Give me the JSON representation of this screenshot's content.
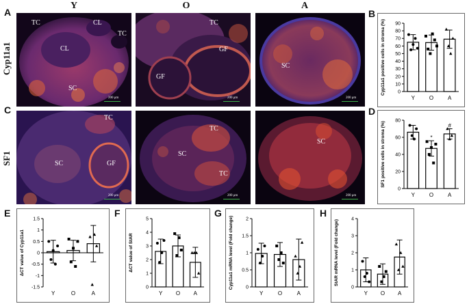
{
  "figure": {
    "columns": [
      "Y",
      "O",
      "A"
    ],
    "rows": [
      "Cyp11a1",
      "SF1"
    ],
    "panel_letters": [
      "A",
      "B",
      "C",
      "D",
      "E",
      "F",
      "G",
      "H"
    ]
  },
  "micrographs": [
    {
      "id": "A-Y",
      "labels": [
        {
          "t": "TC",
          "cls": "a"
        },
        {
          "t": "CL",
          "cls": "b"
        },
        {
          "t": "TC",
          "cls": "c"
        },
        {
          "t": "CL",
          "cls": "d"
        },
        {
          "t": "SC",
          "cls": "e"
        }
      ],
      "scale": "200 μm"
    },
    {
      "id": "A-O",
      "labels": [
        {
          "t": "TC",
          "cls": "a"
        },
        {
          "t": "GF",
          "cls": "b"
        },
        {
          "t": "GF",
          "cls": "c"
        }
      ],
      "scale": "200 μm"
    },
    {
      "id": "A-A",
      "labels": [
        {
          "t": "SC",
          "cls": "a"
        }
      ],
      "scale": "200 μm"
    },
    {
      "id": "C-Y",
      "labels": [
        {
          "t": "TC",
          "cls": "a"
        },
        {
          "t": "SC",
          "cls": "b"
        },
        {
          "t": "GF",
          "cls": "c"
        }
      ],
      "scale": "200 μm"
    },
    {
      "id": "C-O",
      "labels": [
        {
          "t": "TC",
          "cls": "a"
        },
        {
          "t": "SC",
          "cls": "b"
        },
        {
          "t": "TC",
          "cls": "c"
        }
      ],
      "scale": "200 μm"
    },
    {
      "id": "C-A",
      "labels": [
        {
          "t": "SC",
          "cls": "a"
        }
      ],
      "scale": "200 μm"
    }
  ],
  "chart_data": [
    {
      "panel": "B",
      "type": "bar",
      "categories": [
        "Y",
        "O",
        "A"
      ],
      "values": [
        65,
        64.5,
        69
      ],
      "errors": [
        10,
        10,
        12
      ],
      "points": [
        [
          75,
          55,
          62,
          70,
          57
        ],
        [
          73,
          56,
          50,
          76,
          68,
          60
        ],
        [
          82,
          60,
          50,
          70
        ]
      ],
      "ylabel": "Cyp11a1 positive cells in stroma (%)",
      "ylim": [
        0,
        90
      ],
      "yticks": [
        0,
        10,
        20,
        30,
        40,
        50,
        60,
        70,
        80,
        90
      ],
      "annotations": [
        "",
        "",
        ""
      ]
    },
    {
      "panel": "D",
      "type": "bar",
      "categories": [
        "Y",
        "O",
        "A"
      ],
      "values": [
        66,
        47,
        64
      ],
      "errors": [
        8,
        9,
        6
      ],
      "points": [
        [
          74,
          62,
          58,
          70
        ],
        [
          55,
          40,
          48,
          30,
          52
        ],
        [
          70,
          58,
          62
        ]
      ],
      "ylabel": "SF1 positive cells in stroma (%)",
      "ylim": [
        0,
        80
      ],
      "yticks": [
        0,
        20,
        40,
        60,
        80
      ],
      "annotations": [
        "",
        "*",
        "#"
      ]
    },
    {
      "panel": "E",
      "type": "bar",
      "categories": [
        "Y",
        "O",
        "A"
      ],
      "values": [
        0.05,
        0.1,
        0.4
      ],
      "errors": [
        0.5,
        0.45,
        0.8
      ],
      "points": [
        [
          0.5,
          -0.3,
          0.1,
          -0.5,
          0.3
        ],
        [
          0.6,
          -0.4,
          0.2,
          -0.6,
          0.5
        ],
        [
          0.7,
          -1.4,
          0.8,
          0.3
        ]
      ],
      "ylabel": "ΔCT value of Cyp11a1",
      "ylim": [
        -1.5,
        1.5
      ],
      "yticks": [
        -1.5,
        -1.0,
        -0.5,
        0.0,
        0.5,
        1.0,
        1.5
      ],
      "annotations": [
        "",
        "",
        ""
      ]
    },
    {
      "panel": "F",
      "type": "bar",
      "categories": [
        "Y",
        "O",
        "A"
      ],
      "values": [
        2.6,
        3.0,
        1.8
      ],
      "errors": [
        0.9,
        0.8,
        1.1
      ],
      "points": [
        [
          3.2,
          1.8,
          2.5,
          3.4
        ],
        [
          3.9,
          2.3,
          3.6,
          2.7
        ],
        [
          2.5,
          2.5,
          2.5,
          1.0
        ]
      ],
      "ylabel": "ΔCT value of StAR",
      "ylim": [
        0,
        5
      ],
      "yticks": [
        0,
        1,
        2,
        3,
        4,
        5
      ],
      "annotations": [
        "",
        "",
        ""
      ]
    },
    {
      "panel": "G",
      "type": "bar",
      "categories": [
        "Y",
        "O",
        "A"
      ],
      "values": [
        0.98,
        0.95,
        0.8
      ],
      "errors": [
        0.3,
        0.35,
        0.6
      ],
      "points": [
        [
          1.1,
          0.7,
          0.9,
          1.2
        ],
        [
          1.2,
          0.8,
          1.0,
          0.7
        ],
        [
          0.9,
          0.4,
          0.6,
          1.3
        ]
      ],
      "ylabel": "Cyp11a1 mRNA level (Fold change)",
      "ylim": [
        0,
        2.0
      ],
      "yticks": [
        0,
        0.5,
        1.0,
        1.5,
        2.0
      ],
      "annotations": [
        "",
        "",
        ""
      ]
    },
    {
      "panel": "H",
      "type": "bar",
      "categories": [
        "Y",
        "O",
        "A"
      ],
      "values": [
        1.0,
        0.75,
        1.75
      ],
      "errors": [
        0.7,
        0.6,
        1.0
      ],
      "points": [
        [
          1.5,
          0.6,
          0.8,
          0.3
        ],
        [
          1.2,
          0.3,
          0.6,
          0.9
        ],
        [
          2.5,
          1.0,
          2.0,
          1.2
        ]
      ],
      "ylabel": "StAR mRNA level (Fold change)",
      "ylim": [
        0,
        4
      ],
      "yticks": [
        0,
        1,
        2,
        3,
        4
      ],
      "annotations": [
        "",
        "",
        ""
      ]
    }
  ]
}
